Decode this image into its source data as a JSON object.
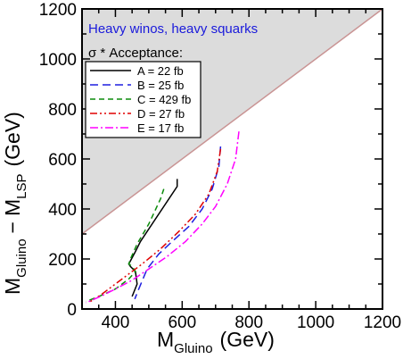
{
  "chart_data": {
    "type": "line",
    "annotation": "Heavy winos, heavy squarks",
    "annotation_color": "#1a1adb",
    "xlabel": {
      "main": "M",
      "sub": "Gluino",
      "unit": "(GeV)"
    },
    "ylabel": {
      "main1": "M",
      "sub1": "Gluino",
      "minus": "−",
      "main2": "M",
      "sub2": "LSP",
      "unit": "(GeV)"
    },
    "xlim": [
      300,
      1200
    ],
    "ylim": [
      0,
      1200
    ],
    "xticks": [
      400,
      600,
      800,
      1000,
      1200
    ],
    "yticks": [
      0,
      200,
      400,
      600,
      800,
      1000,
      1200
    ],
    "grid": false,
    "legend": {
      "title": "σ * Acceptance:",
      "placement": "upper-left"
    },
    "excluded_region": {
      "fill": "#dcdcdc",
      "boundary_color": "#c99494",
      "boundary": [
        [
          300,
          300
        ],
        [
          1200,
          1200
        ]
      ]
    },
    "series": [
      {
        "name": "A = 22 fb",
        "color": "#000000",
        "dash": "solid",
        "x": [
          585,
          585,
          475,
          460,
          440,
          445,
          460,
          465,
          450
        ],
        "y": [
          520,
          490,
          270,
          230,
          180,
          170,
          150,
          100,
          50
        ]
      },
      {
        "name": "B = 25 fb",
        "color": "#1f1fe0",
        "dash": "long-dash",
        "x": [
          715,
          710,
          690,
          660,
          620,
          570,
          530,
          495,
          470,
          458
        ],
        "y": [
          650,
          570,
          480,
          400,
          330,
          270,
          220,
          160,
          80,
          40
        ]
      },
      {
        "name": "C = 429 fb",
        "color": "#0c8c0c",
        "dash": "dash",
        "x": [
          545,
          535,
          500,
          465,
          445,
          440,
          450,
          460,
          440,
          400,
          350,
          312
        ],
        "y": [
          480,
          440,
          340,
          260,
          200,
          180,
          170,
          150,
          120,
          80,
          50,
          30
        ]
      },
      {
        "name": "D = 27 fb",
        "color": "#e00000",
        "dash": "dash-dot-dot",
        "x": [
          715,
          705,
          680,
          640,
          590,
          535,
          480,
          430,
          390,
          355,
          325
        ],
        "y": [
          640,
          550,
          460,
          380,
          310,
          240,
          180,
          130,
          90,
          55,
          30
        ]
      },
      {
        "name": "E = 17 fb",
        "color": "#ff00ff",
        "dash": "dash-dot",
        "x": [
          770,
          760,
          735,
          700,
          660,
          610,
          555,
          500,
          450,
          400,
          355,
          312
        ],
        "y": [
          710,
          600,
          500,
          410,
          340,
          270,
          210,
          160,
          115,
          80,
          50,
          25
        ]
      }
    ]
  }
}
